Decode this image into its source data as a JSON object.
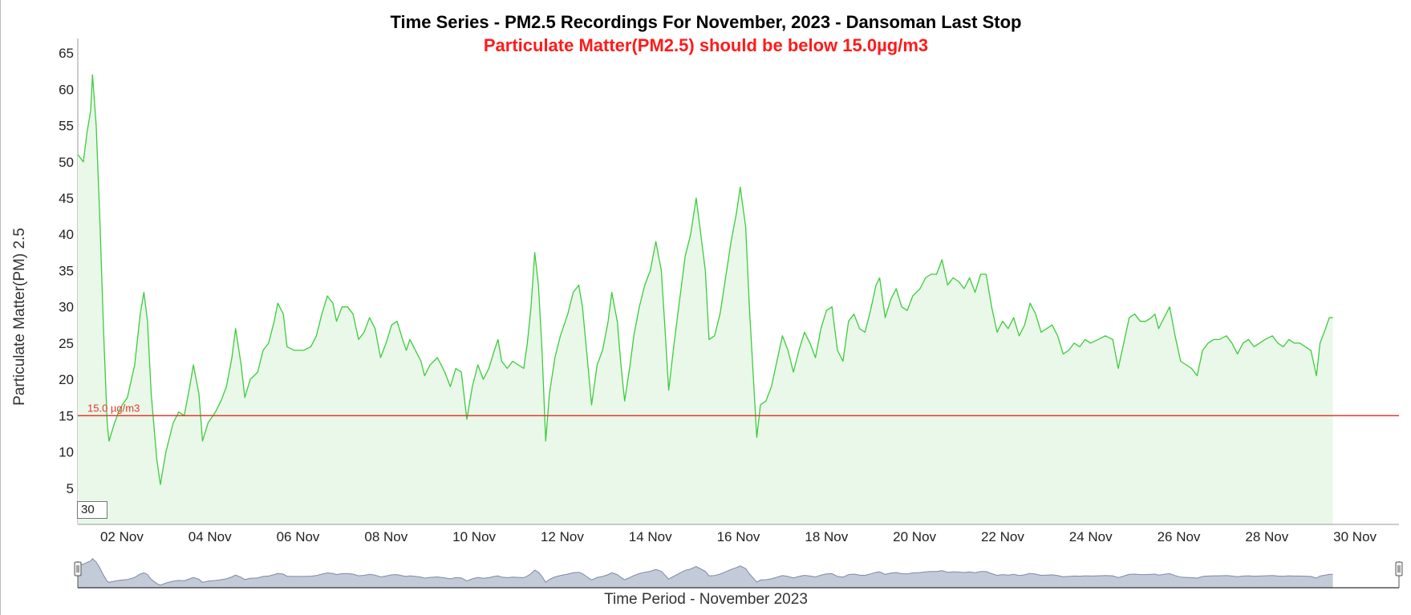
{
  "chart_data": {
    "type": "area",
    "title": "Time Series - PM2.5 Recordings For November, 2023 - Dansoman Last Stop",
    "subtitle": "Particulate Matter(PM2.5) should be below 15.0µg/m3",
    "ylabel": "Particulate Matter(PM) 2.5",
    "xlabel": "Time Period - November 2023",
    "ylim": [
      0,
      67
    ],
    "yticks": [
      5,
      10,
      15,
      20,
      25,
      30,
      35,
      40,
      45,
      50,
      55,
      60,
      65
    ],
    "x_start": "2023-11-01T00:00",
    "x_end": "2023-12-01T00:00",
    "xticks": [
      "02 Nov",
      "04 Nov",
      "06 Nov",
      "08 Nov",
      "10 Nov",
      "12 Nov",
      "14 Nov",
      "16 Nov",
      "18 Nov",
      "20 Nov",
      "22 Nov",
      "24 Nov",
      "26 Nov",
      "28 Nov",
      "30 Nov"
    ],
    "xtick_dates": [
      "2023-11-02T00:00",
      "2023-11-04T00:00",
      "2023-11-06T00:00",
      "2023-11-08T00:00",
      "2023-11-10T00:00",
      "2023-11-12T00:00",
      "2023-11-14T00:00",
      "2023-11-16T00:00",
      "2023-11-18T00:00",
      "2023-11-20T00:00",
      "2023-11-22T00:00",
      "2023-11-24T00:00",
      "2023-11-26T00:00",
      "2023-11-28T00:00",
      "2023-11-30T00:00"
    ],
    "threshold": {
      "value": 15.0,
      "label": "15.0 µg/m3",
      "color": "#e03a2a"
    },
    "rolling_period": "30",
    "series": [
      {
        "color": "#3ccc3c",
        "fill": "#e9f8e9",
        "points": [
          [
            "2023-11-01T00:00",
            51
          ],
          [
            "2023-11-01T03:00",
            50
          ],
          [
            "2023-11-01T05:00",
            54
          ],
          [
            "2023-11-01T07:00",
            57
          ],
          [
            "2023-11-01T08:00",
            62
          ],
          [
            "2023-11-01T10:00",
            55
          ],
          [
            "2023-11-01T12:00",
            42
          ],
          [
            "2023-11-01T14:00",
            27
          ],
          [
            "2023-11-01T16:00",
            14
          ],
          [
            "2023-11-01T17:00",
            11.5
          ],
          [
            "2023-11-01T20:00",
            14
          ],
          [
            "2023-11-01T23:00",
            16
          ],
          [
            "2023-11-02T03:00",
            17.5
          ],
          [
            "2023-11-02T07:00",
            22
          ],
          [
            "2023-11-02T10:00",
            29
          ],
          [
            "2023-11-02T12:00",
            32
          ],
          [
            "2023-11-02T14:00",
            28
          ],
          [
            "2023-11-02T16:00",
            18
          ],
          [
            "2023-11-02T19:00",
            9
          ],
          [
            "2023-11-02T21:00",
            5.5
          ],
          [
            "2023-11-03T00:00",
            10
          ],
          [
            "2023-11-03T04:00",
            14
          ],
          [
            "2023-11-03T07:00",
            15.5
          ],
          [
            "2023-11-03T10:00",
            15
          ],
          [
            "2023-11-03T13:00",
            19
          ],
          [
            "2023-11-03T15:00",
            22
          ],
          [
            "2023-11-03T18:00",
            18
          ],
          [
            "2023-11-03T20:00",
            11.5
          ],
          [
            "2023-11-03T23:00",
            14
          ],
          [
            "2023-11-04T03:00",
            15.5
          ],
          [
            "2023-11-04T06:00",
            17
          ],
          [
            "2023-11-04T09:00",
            19
          ],
          [
            "2023-11-04T12:00",
            23
          ],
          [
            "2023-11-04T14:00",
            27
          ],
          [
            "2023-11-04T17:00",
            22
          ],
          [
            "2023-11-04T19:00",
            17.5
          ],
          [
            "2023-11-04T22:00",
            20
          ],
          [
            "2023-11-05T02:00",
            21
          ],
          [
            "2023-11-05T05:00",
            24
          ],
          [
            "2023-11-05T08:00",
            25
          ],
          [
            "2023-11-05T11:00",
            28
          ],
          [
            "2023-11-05T13:00",
            30.5
          ],
          [
            "2023-11-05T16:00",
            29
          ],
          [
            "2023-11-05T18:00",
            24.5
          ],
          [
            "2023-11-05T22:00",
            24
          ],
          [
            "2023-11-06T03:00",
            24
          ],
          [
            "2023-11-06T07:00",
            24.5
          ],
          [
            "2023-11-06T10:00",
            26
          ],
          [
            "2023-11-06T13:00",
            29
          ],
          [
            "2023-11-06T16:00",
            31.5
          ],
          [
            "2023-11-06T19:00",
            30.5
          ],
          [
            "2023-11-06T21:00",
            28
          ],
          [
            "2023-11-07T00:00",
            30
          ],
          [
            "2023-11-07T03:00",
            30
          ],
          [
            "2023-11-07T06:00",
            29
          ],
          [
            "2023-11-07T09:00",
            25.5
          ],
          [
            "2023-11-07T12:00",
            26.5
          ],
          [
            "2023-11-07T15:00",
            28.5
          ],
          [
            "2023-11-07T18:00",
            27
          ],
          [
            "2023-11-07T21:00",
            23
          ],
          [
            "2023-11-08T00:00",
            25
          ],
          [
            "2023-11-08T03:00",
            27.5
          ],
          [
            "2023-11-08T06:00",
            28
          ],
          [
            "2023-11-08T09:00",
            25.5
          ],
          [
            "2023-11-08T11:00",
            24
          ],
          [
            "2023-11-08T13:00",
            25.5
          ],
          [
            "2023-11-08T16:00",
            24
          ],
          [
            "2023-11-08T19:00",
            22.5
          ],
          [
            "2023-11-08T21:00",
            20.5
          ],
          [
            "2023-11-09T00:00",
            22
          ],
          [
            "2023-11-09T04:00",
            23
          ],
          [
            "2023-11-09T08:00",
            21
          ],
          [
            "2023-11-09T11:00",
            19
          ],
          [
            "2023-11-09T14:00",
            21.5
          ],
          [
            "2023-11-09T17:00",
            21
          ],
          [
            "2023-11-09T20:00",
            14.5
          ],
          [
            "2023-11-09T23:00",
            19
          ],
          [
            "2023-11-10T02:00",
            22
          ],
          [
            "2023-11-10T05:00",
            20
          ],
          [
            "2023-11-10T08:00",
            21.5
          ],
          [
            "2023-11-10T11:00",
            24
          ],
          [
            "2023-11-10T13:00",
            25.5
          ],
          [
            "2023-11-10T15:00",
            22.5
          ],
          [
            "2023-11-10T18:00",
            21.5
          ],
          [
            "2023-11-10T21:00",
            22.5
          ],
          [
            "2023-11-11T00:00",
            22
          ],
          [
            "2023-11-11T03:00",
            21.5
          ],
          [
            "2023-11-11T05:00",
            25
          ],
          [
            "2023-11-11T07:00",
            30
          ],
          [
            "2023-11-11T09:00",
            37.5
          ],
          [
            "2023-11-11T11:00",
            33
          ],
          [
            "2023-11-11T13:00",
            24
          ],
          [
            "2023-11-11T15:00",
            11.5
          ],
          [
            "2023-11-11T17:00",
            18
          ],
          [
            "2023-11-11T20:00",
            23
          ],
          [
            "2023-11-11T23:00",
            26
          ],
          [
            "2023-11-12T03:00",
            29
          ],
          [
            "2023-11-12T06:00",
            32
          ],
          [
            "2023-11-12T09:00",
            33
          ],
          [
            "2023-11-12T11:00",
            30
          ],
          [
            "2023-11-12T14:00",
            22
          ],
          [
            "2023-11-12T16:00",
            16.5
          ],
          [
            "2023-11-12T19:00",
            22
          ],
          [
            "2023-11-12T22:00",
            24
          ],
          [
            "2023-11-13T01:00",
            28
          ],
          [
            "2023-11-13T03:00",
            32
          ],
          [
            "2023-11-13T06:00",
            28
          ],
          [
            "2023-11-13T08:00",
            22
          ],
          [
            "2023-11-13T10:00",
            17
          ],
          [
            "2023-11-13T13:00",
            22
          ],
          [
            "2023-11-13T15:00",
            26
          ],
          [
            "2023-11-13T18:00",
            30
          ],
          [
            "2023-11-13T21:00",
            33
          ],
          [
            "2023-11-14T00:00",
            35
          ],
          [
            "2023-11-14T03:00",
            39
          ],
          [
            "2023-11-14T06:00",
            35
          ],
          [
            "2023-11-14T08:00",
            27
          ],
          [
            "2023-11-14T10:00",
            18.5
          ],
          [
            "2023-11-14T13:00",
            25
          ],
          [
            "2023-11-14T16:00",
            31
          ],
          [
            "2023-11-14T19:00",
            37
          ],
          [
            "2023-11-14T22:00",
            40
          ],
          [
            "2023-11-15T01:00",
            45
          ],
          [
            "2023-11-15T03:00",
            41
          ],
          [
            "2023-11-15T06:00",
            35
          ],
          [
            "2023-11-15T08:00",
            25.5
          ],
          [
            "2023-11-15T11:00",
            26
          ],
          [
            "2023-11-15T14:00",
            29
          ],
          [
            "2023-11-15T17:00",
            34
          ],
          [
            "2023-11-15T20:00",
            39
          ],
          [
            "2023-11-15T23:00",
            43
          ],
          [
            "2023-11-16T01:00",
            46.5
          ],
          [
            "2023-11-16T04:00",
            41
          ],
          [
            "2023-11-16T06:00",
            30
          ],
          [
            "2023-11-16T08:00",
            21
          ],
          [
            "2023-11-16T10:00",
            12
          ],
          [
            "2023-11-16T12:00",
            16.5
          ],
          [
            "2023-11-16T15:00",
            17
          ],
          [
            "2023-11-16T18:00",
            19
          ],
          [
            "2023-11-16T21:00",
            22.5
          ],
          [
            "2023-11-17T00:00",
            26
          ],
          [
            "2023-11-17T03:00",
            24
          ],
          [
            "2023-11-17T06:00",
            21
          ],
          [
            "2023-11-17T09:00",
            24
          ],
          [
            "2023-11-17T12:00",
            26.5
          ],
          [
            "2023-11-17T15:00",
            25
          ],
          [
            "2023-11-17T18:00",
            23
          ],
          [
            "2023-11-17T21:00",
            27
          ],
          [
            "2023-11-18T00:00",
            29.5
          ],
          [
            "2023-11-18T03:00",
            30
          ],
          [
            "2023-11-18T06:00",
            24
          ],
          [
            "2023-11-18T09:00",
            22.5
          ],
          [
            "2023-11-18T12:00",
            28
          ],
          [
            "2023-11-18T15:00",
            29
          ],
          [
            "2023-11-18T18:00",
            27
          ],
          [
            "2023-11-18T21:00",
            26.5
          ],
          [
            "2023-11-19T00:00",
            29.5
          ],
          [
            "2023-11-19T03:00",
            33
          ],
          [
            "2023-11-19T05:00",
            34
          ],
          [
            "2023-11-19T08:00",
            28.5
          ],
          [
            "2023-11-19T11:00",
            31
          ],
          [
            "2023-11-19T14:00",
            32.5
          ],
          [
            "2023-11-19T17:00",
            30
          ],
          [
            "2023-11-19T20:00",
            29.5
          ],
          [
            "2023-11-19T23:00",
            31.5
          ],
          [
            "2023-11-20T03:00",
            32.5
          ],
          [
            "2023-11-20T06:00",
            34
          ],
          [
            "2023-11-20T09:00",
            34.5
          ],
          [
            "2023-11-20T12:00",
            34.5
          ],
          [
            "2023-11-20T15:00",
            36.5
          ],
          [
            "2023-11-20T18:00",
            33
          ],
          [
            "2023-11-20T21:00",
            34
          ],
          [
            "2023-11-21T00:00",
            33.5
          ],
          [
            "2023-11-21T03:00",
            32.5
          ],
          [
            "2023-11-21T06:00",
            34
          ],
          [
            "2023-11-21T09:00",
            32
          ],
          [
            "2023-11-21T12:00",
            34.5
          ],
          [
            "2023-11-21T15:00",
            34.5
          ],
          [
            "2023-11-21T18:00",
            30
          ],
          [
            "2023-11-21T21:00",
            26.5
          ],
          [
            "2023-11-22T00:00",
            28
          ],
          [
            "2023-11-22T03:00",
            27
          ],
          [
            "2023-11-22T06:00",
            28.5
          ],
          [
            "2023-11-22T09:00",
            26
          ],
          [
            "2023-11-22T12:00",
            27.5
          ],
          [
            "2023-11-22T15:00",
            30.5
          ],
          [
            "2023-11-22T18:00",
            29
          ],
          [
            "2023-11-22T21:00",
            26.5
          ],
          [
            "2023-11-23T00:00",
            27
          ],
          [
            "2023-11-23T03:00",
            27.5
          ],
          [
            "2023-11-23T06:00",
            26
          ],
          [
            "2023-11-23T09:00",
            23.5
          ],
          [
            "2023-11-23T12:00",
            24
          ],
          [
            "2023-11-23T15:00",
            25
          ],
          [
            "2023-11-23T18:00",
            24.5
          ],
          [
            "2023-11-23T21:00",
            25.5
          ],
          [
            "2023-11-24T00:00",
            25
          ],
          [
            "2023-11-24T04:00",
            25.5
          ],
          [
            "2023-11-24T08:00",
            26
          ],
          [
            "2023-11-24T12:00",
            25.5
          ],
          [
            "2023-11-24T15:00",
            21.5
          ],
          [
            "2023-11-24T18:00",
            25
          ],
          [
            "2023-11-24T21:00",
            28.5
          ],
          [
            "2023-11-25T00:00",
            29
          ],
          [
            "2023-11-25T03:00",
            28
          ],
          [
            "2023-11-25T06:00",
            28
          ],
          [
            "2023-11-25T09:00",
            28.5
          ],
          [
            "2023-11-25T11:00",
            29
          ],
          [
            "2023-11-25T13:00",
            27
          ],
          [
            "2023-11-25T16:00",
            28.5
          ],
          [
            "2023-11-25T19:00",
            30
          ],
          [
            "2023-11-25T22:00",
            26
          ],
          [
            "2023-11-26T01:00",
            22.5
          ],
          [
            "2023-11-26T04:00",
            22
          ],
          [
            "2023-11-26T07:00",
            21.5
          ],
          [
            "2023-11-26T10:00",
            20.5
          ],
          [
            "2023-11-26T13:00",
            24
          ],
          [
            "2023-11-26T16:00",
            25
          ],
          [
            "2023-11-26T19:00",
            25.5
          ],
          [
            "2023-11-26T22:00",
            25.5
          ],
          [
            "2023-11-27T02:00",
            26
          ],
          [
            "2023-11-27T05:00",
            25
          ],
          [
            "2023-11-27T08:00",
            23.5
          ],
          [
            "2023-11-27T11:00",
            25
          ],
          [
            "2023-11-27T14:00",
            25.5
          ],
          [
            "2023-11-27T17:00",
            24.5
          ],
          [
            "2023-11-27T20:00",
            25
          ],
          [
            "2023-11-27T23:00",
            25.5
          ],
          [
            "2023-11-28T03:00",
            26
          ],
          [
            "2023-11-28T06:00",
            25
          ],
          [
            "2023-11-28T09:00",
            24.5
          ],
          [
            "2023-11-28T12:00",
            25.5
          ],
          [
            "2023-11-28T15:00",
            25
          ],
          [
            "2023-11-28T18:00",
            25
          ],
          [
            "2023-11-28T21:00",
            24.5
          ],
          [
            "2023-11-29T00:00",
            24
          ],
          [
            "2023-11-29T03:00",
            20.5
          ],
          [
            "2023-11-29T05:00",
            25
          ],
          [
            "2023-11-29T08:00",
            27
          ],
          [
            "2023-11-29T10:00",
            28.5
          ],
          [
            "2023-11-29T12:00",
            28.5
          ]
        ]
      }
    ]
  }
}
